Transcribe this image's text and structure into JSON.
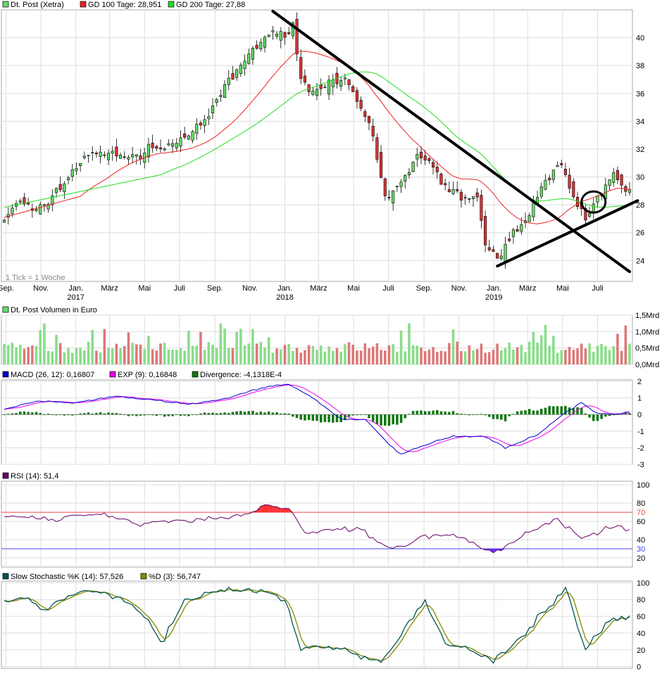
{
  "colors": {
    "up": "#66dd66",
    "down": "#dd3333",
    "vol_up": "#88dd88",
    "vol_down": "#dd7777",
    "gd100": "#ee2222",
    "gd200": "#22dd22",
    "macd": "#0000cc",
    "exp": "#ee00ee",
    "div": "#117711",
    "rsi": "#660066",
    "rsi_fill_hi": "#ff3333",
    "rsi_fill_lo": "#6633ff",
    "stoch_k": "#005555",
    "stoch_d": "#888800",
    "grid": "#dddddd",
    "annotation": "#000000"
  },
  "main": {
    "legend": [
      {
        "label": "Dt. Post (Xetra)",
        "color": "#66dd66"
      },
      {
        "label": "GD 100 Tage: 28,951",
        "color": "#ee2222"
      },
      {
        "label": "GD 200 Tage: 27,88",
        "color": "#22dd22"
      }
    ],
    "note": "1 Tick = 1 Woche",
    "yticks": [
      "24",
      "26",
      "28",
      "30",
      "32",
      "34",
      "36",
      "38",
      "40"
    ],
    "month_labels": [
      "Sep.",
      "Nov.",
      "Jan.",
      "März",
      "Mai",
      "Juli",
      "Sep.",
      "Nov.",
      "Jan.",
      "März",
      "Mai",
      "Juli",
      "Sep.",
      "Nov.",
      "Jan.",
      "März",
      "Mai",
      "Juli"
    ],
    "year_labels": [
      "2017",
      "2018",
      "2019"
    ]
  },
  "volume": {
    "legend": "Dt. Post Volumen in Euro",
    "yticks": [
      "0,0Mrd",
      "0,5Mrd",
      "1,0Mrd",
      "1,5Mrd"
    ]
  },
  "macd": {
    "legend": [
      {
        "label": "MACD (26, 12): 0,16807",
        "color": "#0000cc"
      },
      {
        "label": "EXP (9): 0,16848",
        "color": "#ee00ee"
      },
      {
        "label": "Divergence: -4,1318E-4",
        "color": "#117711"
      }
    ],
    "yticks": [
      "-3",
      "-2",
      "-1",
      "0",
      "1",
      "2"
    ]
  },
  "rsi": {
    "legend": "RSI (14): 51,4",
    "yticks": [
      "20",
      "40",
      "60",
      "80",
      "100"
    ],
    "level_labels": [
      "70",
      "30"
    ]
  },
  "stoch": {
    "legend": [
      {
        "label": "Slow Stochastic %K (14): 57,526",
        "color": "#005555"
      },
      {
        "label": "%D (3): 56,747",
        "color": "#888800"
      }
    ],
    "yticks": [
      "0",
      "20",
      "40",
      "60",
      "80",
      "100"
    ]
  },
  "chart_data": [
    {
      "type": "candlestick",
      "title": "Dt. Post (Xetra)",
      "period": "weekly",
      "x_range": [
        "2016-08-29",
        "2019-08-26"
      ],
      "ylim": [
        22.5,
        42
      ],
      "close_anchors": [
        [
          "2016-08-29",
          27.0
        ],
        [
          "2016-09-26",
          28.3
        ],
        [
          "2016-10-24",
          27.4
        ],
        [
          "2016-11-21",
          28.6
        ],
        [
          "2016-12-19",
          30.0
        ],
        [
          "2017-01-16",
          31.5
        ],
        [
          "2017-02-13",
          31.6
        ],
        [
          "2017-03-13",
          31.8
        ],
        [
          "2017-04-10",
          31.2
        ],
        [
          "2017-05-08",
          32.2
        ],
        [
          "2017-06-05",
          32.0
        ],
        [
          "2017-07-03",
          32.8
        ],
        [
          "2017-08-07",
          33.5
        ],
        [
          "2017-09-04",
          35.5
        ],
        [
          "2017-10-02",
          37.2
        ],
        [
          "2017-10-30",
          38.8
        ],
        [
          "2017-11-27",
          40.1
        ],
        [
          "2017-12-25",
          40.2
        ],
        [
          "2018-01-15",
          41.0
        ],
        [
          "2018-01-29",
          37.0
        ],
        [
          "2018-02-19",
          36.0
        ],
        [
          "2018-03-12",
          36.8
        ],
        [
          "2018-04-09",
          37.2
        ],
        [
          "2018-05-07",
          35.5
        ],
        [
          "2018-06-04",
          32.8
        ],
        [
          "2018-06-25",
          28.3
        ],
        [
          "2018-07-23",
          29.5
        ],
        [
          "2018-08-20",
          31.5
        ],
        [
          "2018-09-10",
          31.3
        ],
        [
          "2018-10-08",
          29.2
        ],
        [
          "2018-11-05",
          28.6
        ],
        [
          "2018-12-03",
          28.5
        ],
        [
          "2018-12-17",
          25.0
        ],
        [
          "2019-01-07",
          24.0
        ],
        [
          "2019-02-04",
          26.0
        ],
        [
          "2019-03-04",
          27.5
        ],
        [
          "2019-04-01",
          29.5
        ],
        [
          "2019-04-29",
          31.3
        ],
        [
          "2019-05-20",
          28.5
        ],
        [
          "2019-06-10",
          27.0
        ],
        [
          "2019-07-01",
          28.5
        ],
        [
          "2019-07-29",
          30.0
        ],
        [
          "2019-08-19",
          28.9
        ]
      ],
      "series": [
        {
          "name": "GD 100 Tage",
          "last": 28.951
        },
        {
          "name": "GD 200 Tage",
          "last": 27.88
        }
      ],
      "annotations": [
        {
          "kind": "trendline",
          "from": [
            "2017-12-11",
            41.9
          ],
          "to": [
            "2019-08-26",
            23.2
          ]
        },
        {
          "kind": "trendline",
          "from": [
            "2019-01-07",
            23.6
          ],
          "to": [
            "2019-09-09",
            28.3
          ]
        },
        {
          "kind": "circle",
          "at": [
            "2019-06-24",
            28.2
          ]
        }
      ]
    },
    {
      "type": "bar",
      "title": "Dt. Post Volumen in Euro",
      "unit": "Mrd",
      "ylim": [
        0,
        1.5
      ],
      "value_range": [
        0.1,
        1.25
      ]
    },
    {
      "type": "line",
      "title": "MACD",
      "ylim": [
        -3,
        2
      ],
      "macd_anchors": [
        [
          "2016-08-29",
          0.3
        ],
        [
          "2016-10-24",
          0.8
        ],
        [
          "2017-01-02",
          0.7
        ],
        [
          "2017-03-13",
          1.1
        ],
        [
          "2017-05-08",
          0.9
        ],
        [
          "2017-07-17",
          0.6
        ],
        [
          "2017-09-25",
          1.0
        ],
        [
          "2017-11-20",
          1.6
        ],
        [
          "2018-01-08",
          1.85
        ],
        [
          "2018-02-19",
          1.0
        ],
        [
          "2018-04-09",
          -0.3
        ],
        [
          "2018-05-21",
          -0.3
        ],
        [
          "2018-07-02",
          -1.8
        ],
        [
          "2018-07-23",
          -2.4
        ],
        [
          "2018-08-27",
          -1.9
        ],
        [
          "2018-10-22",
          -1.3
        ],
        [
          "2018-12-17",
          -1.35
        ],
        [
          "2019-01-21",
          -2.0
        ],
        [
          "2019-03-18",
          -1.2
        ],
        [
          "2019-05-13",
          0.3
        ],
        [
          "2019-06-03",
          0.7
        ],
        [
          "2019-07-01",
          0.1
        ],
        [
          "2019-07-29",
          0.0
        ],
        [
          "2019-08-26",
          0.17
        ]
      ],
      "series": [
        {
          "name": "MACD (26, 12)",
          "last": 0.16807
        },
        {
          "name": "EXP (9)",
          "last": 0.16848
        },
        {
          "name": "Divergence",
          "last": -0.00041318
        }
      ]
    },
    {
      "type": "line",
      "title": "RSI (14)",
      "ylim": [
        0,
        100
      ],
      "levels": [
        70,
        30
      ],
      "rsi_anchors": [
        [
          "2016-08-29",
          65
        ],
        [
          "2016-12-05",
          62
        ],
        [
          "2017-02-06",
          70
        ],
        [
          "2017-04-17",
          58
        ],
        [
          "2017-06-26",
          61
        ],
        [
          "2017-09-04",
          63
        ],
        [
          "2017-11-06",
          70
        ],
        [
          "2017-12-04",
          80
        ],
        [
          "2018-01-15",
          70
        ],
        [
          "2018-02-05",
          47
        ],
        [
          "2018-05-07",
          52
        ],
        [
          "2018-07-09",
          28
        ],
        [
          "2018-08-27",
          42
        ],
        [
          "2018-10-22",
          45
        ],
        [
          "2018-12-31",
          25
        ],
        [
          "2019-02-25",
          47
        ],
        [
          "2019-04-22",
          63
        ],
        [
          "2019-06-03",
          41
        ],
        [
          "2019-07-29",
          56
        ],
        [
          "2019-08-26",
          51.4
        ]
      ],
      "series": [
        {
          "name": "RSI (14)",
          "last": 51.4
        }
      ]
    },
    {
      "type": "line",
      "title": "Slow Stochastic",
      "ylim": [
        0,
        100
      ],
      "k_anchors": [
        [
          "2016-08-29",
          80
        ],
        [
          "2016-10-10",
          82
        ],
        [
          "2016-11-07",
          68
        ],
        [
          "2017-01-16",
          92
        ],
        [
          "2017-03-27",
          80
        ],
        [
          "2017-05-08",
          55
        ],
        [
          "2017-05-29",
          25
        ],
        [
          "2017-07-10",
          80
        ],
        [
          "2017-09-04",
          90
        ],
        [
          "2017-11-20",
          92
        ],
        [
          "2018-01-01",
          80
        ],
        [
          "2018-01-29",
          20
        ],
        [
          "2018-02-26",
          25
        ],
        [
          "2018-04-16",
          20
        ],
        [
          "2018-05-07",
          15
        ],
        [
          "2018-06-18",
          5
        ],
        [
          "2018-09-03",
          80
        ],
        [
          "2018-10-08",
          25
        ],
        [
          "2018-11-12",
          25
        ],
        [
          "2018-12-31",
          5
        ],
        [
          "2019-02-25",
          40
        ],
        [
          "2019-05-06",
          95
        ],
        [
          "2019-06-10",
          20
        ],
        [
          "2019-07-29",
          60
        ],
        [
          "2019-08-26",
          57.526
        ]
      ],
      "series": [
        {
          "name": "Slow Stochastic %K (14)",
          "last": 57.526
        },
        {
          "name": "%D (3)",
          "last": 56.747
        }
      ]
    }
  ]
}
